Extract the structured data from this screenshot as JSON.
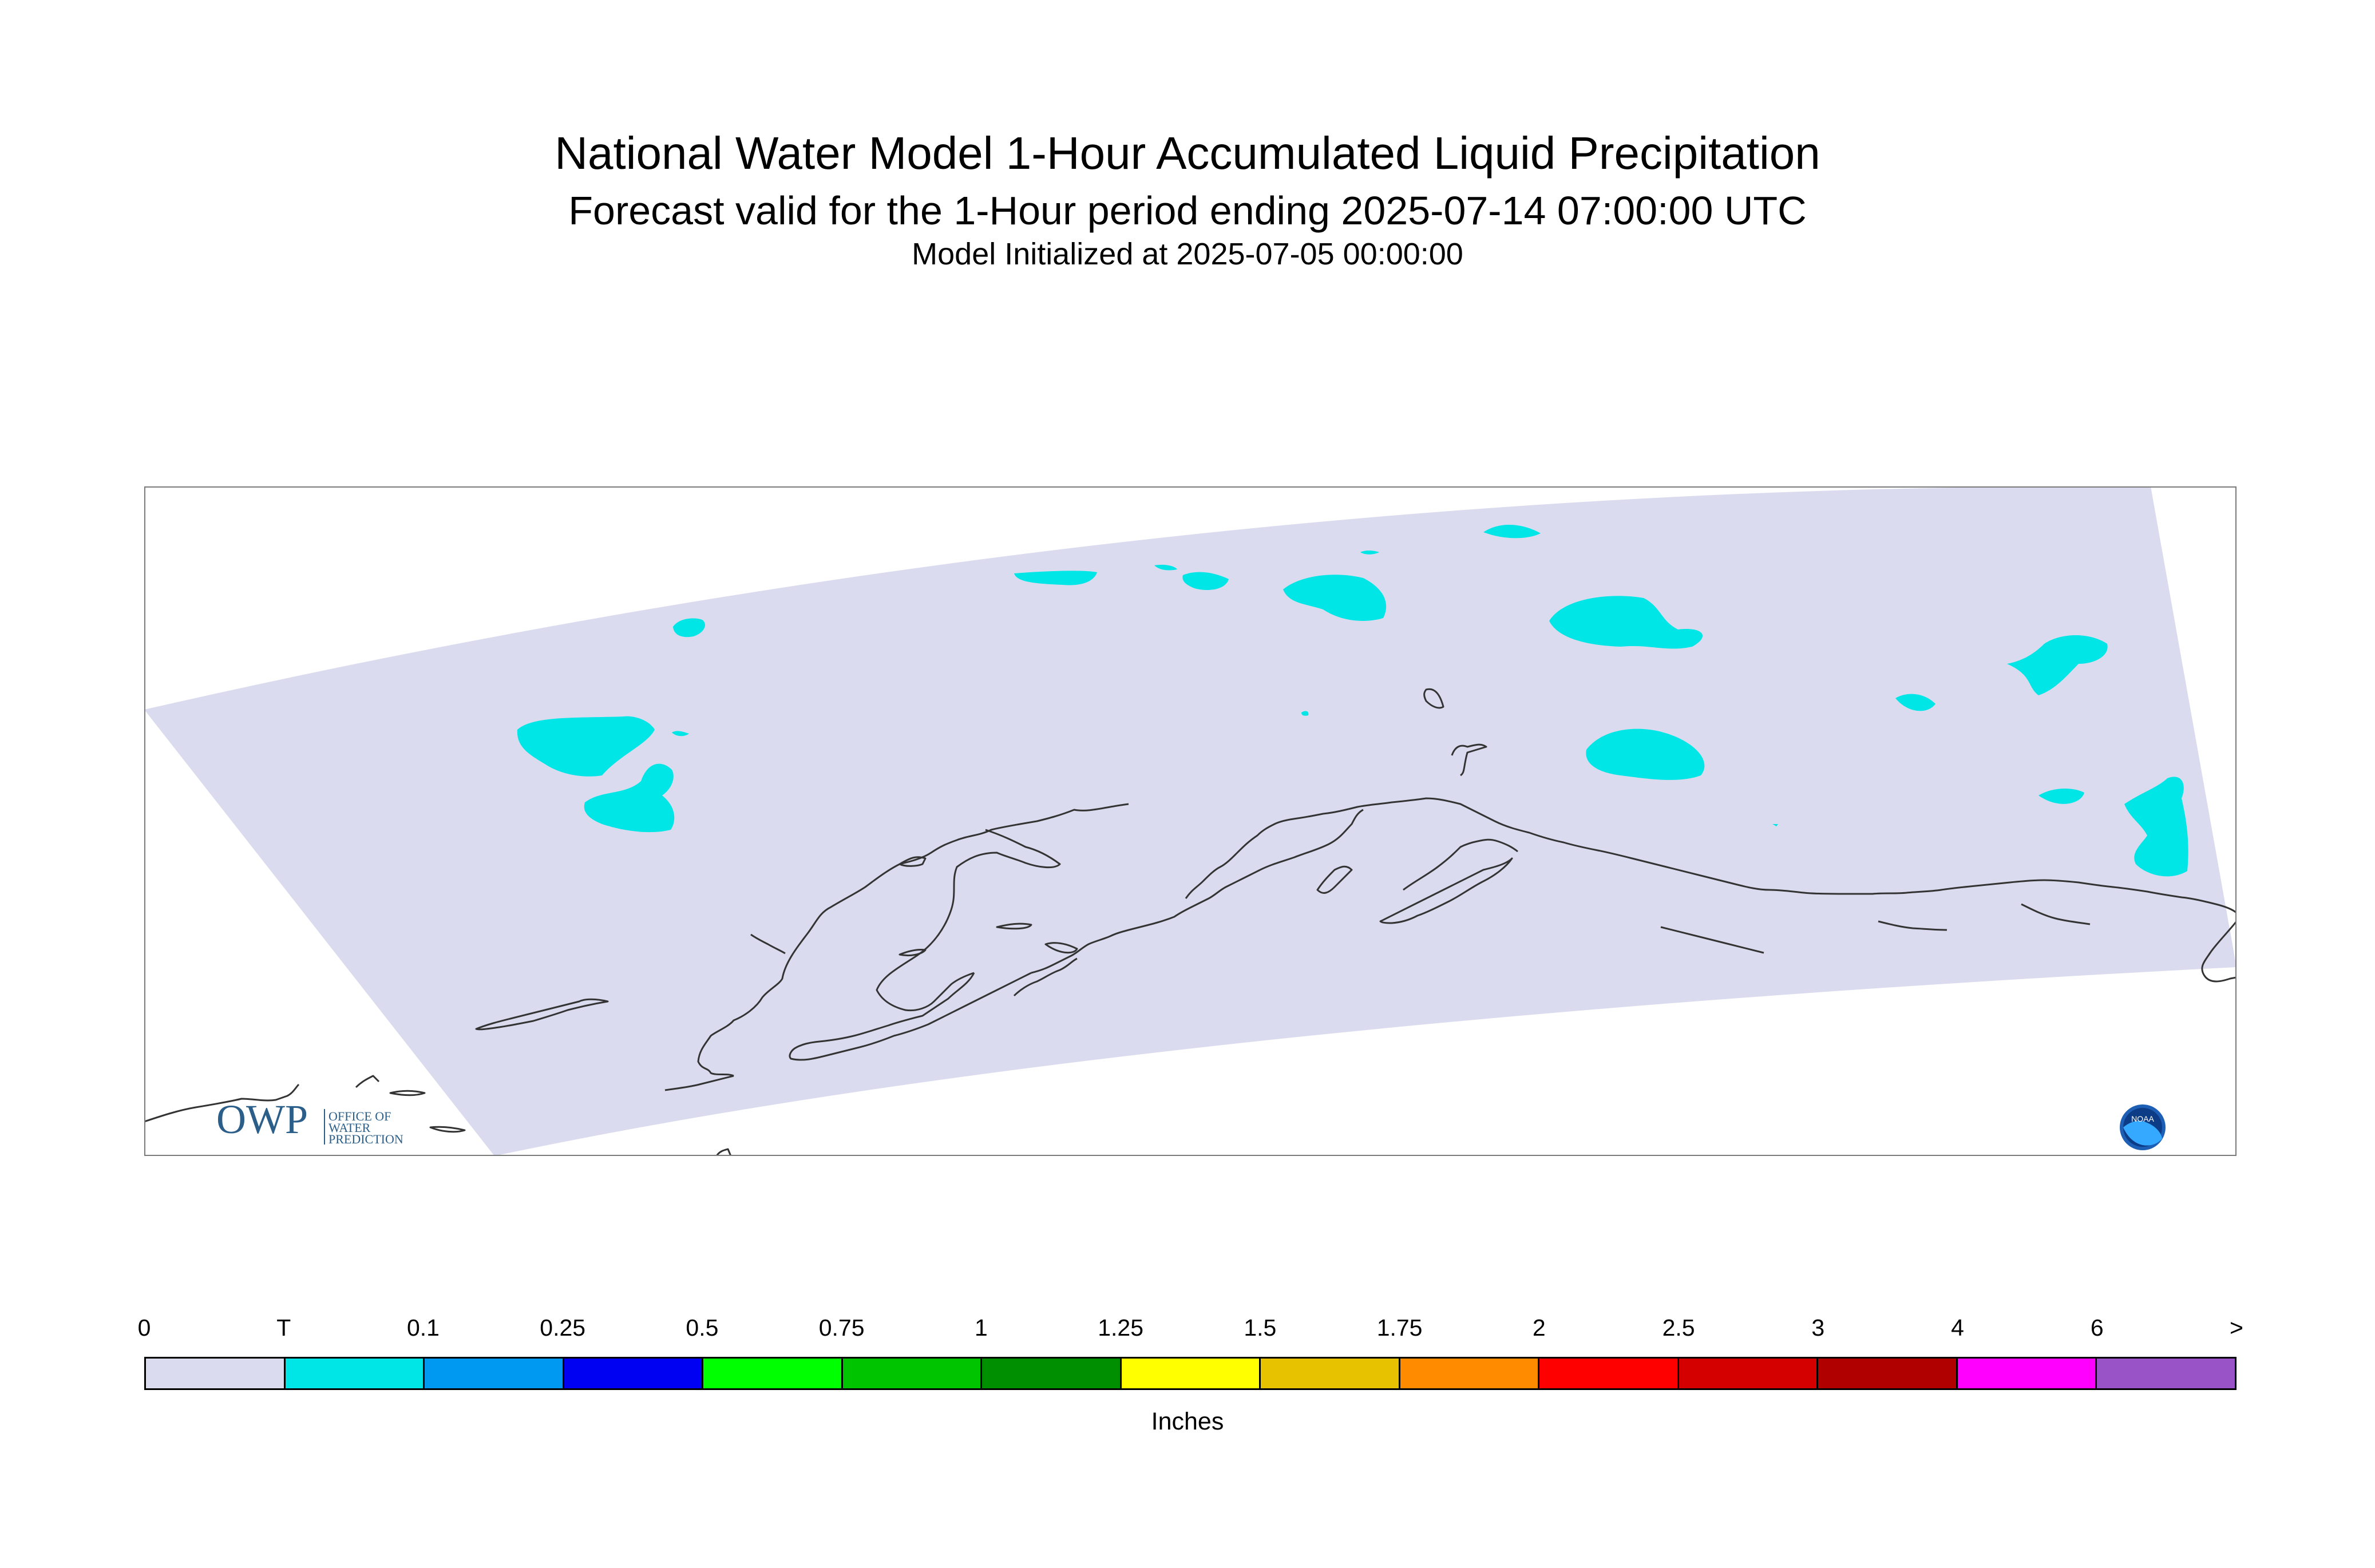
{
  "title": "National Water Model 1-Hour Accumulated Liquid Precipitation",
  "subtitle": "Forecast valid for the 1-Hour period ending 2025-07-14 07:00:00 UTC",
  "init_line": "Model Initialized at 2025-07-05 00:00:00",
  "logo_text": {
    "owp": "OWP",
    "office": [
      "OFFICE OF",
      "WATER",
      "PREDICTION"
    ],
    "noaa": "NOAA"
  },
  "legend": {
    "labels": [
      "0",
      "T",
      "0.1",
      "0.25",
      "0.5",
      "0.75",
      "1",
      "1.25",
      "1.5",
      "1.75",
      "2",
      "2.5",
      "3",
      "4",
      "6",
      ">"
    ],
    "colors": [
      "#dadbee",
      "#00e6e6",
      "#0099f2",
      "#0000f2",
      "#00ff00",
      "#00c400",
      "#008f00",
      "#ffff00",
      "#e6c200",
      "#ff8c00",
      "#ff0000",
      "#d40000",
      "#b00000",
      "#ff00ff",
      "#9a52c7"
    ],
    "units": "Inches"
  },
  "colors": {
    "domain_fill": "#dadbee",
    "trace_precip": "#00e6e6",
    "coastline": "#333333"
  }
}
